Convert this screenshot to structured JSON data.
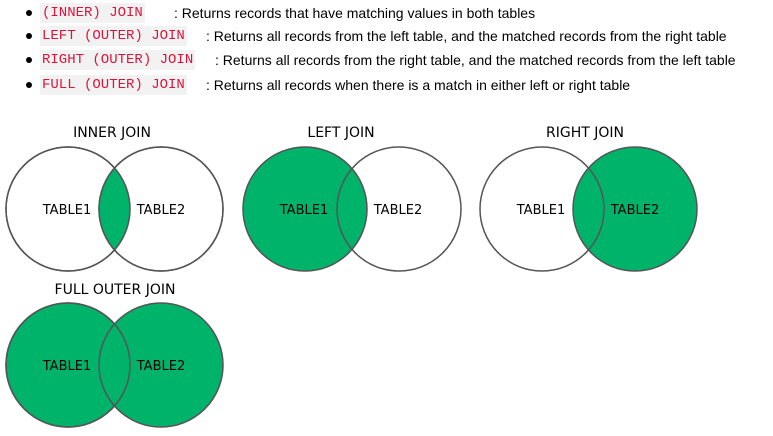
{
  "bullets": [
    {
      "keyword": "(INNER) JOIN",
      "description": ": Returns records that have matching values in both tables"
    },
    {
      "keyword": "LEFT (OUTER) JOIN",
      "description": ": Returns all records from the left table, and the matched records from the right table"
    },
    {
      "keyword": "RIGHT (OUTER) JOIN",
      "description": ": Returns all records from the right table, and the matched records from the left table"
    },
    {
      "keyword": "FULL (OUTER) JOIN",
      "description": ": Returns all records when there is a match in either left or right table"
    }
  ],
  "diagrams": [
    {
      "title": "INNER JOIN",
      "left_label": "TABLE1",
      "right_label": "TABLE2",
      "highlight": "intersection"
    },
    {
      "title": "LEFT JOIN",
      "left_label": "TABLE1",
      "right_label": "TABLE2",
      "highlight": "left"
    },
    {
      "title": "RIGHT JOIN",
      "left_label": "TABLE1",
      "right_label": "TABLE2",
      "highlight": "right"
    },
    {
      "title": "FULL OUTER JOIN",
      "left_label": "TABLE1",
      "right_label": "TABLE2",
      "highlight": "both"
    }
  ],
  "colors": {
    "fill": "#00b36b",
    "stroke": "#555555",
    "keyword": "#dc143c"
  }
}
